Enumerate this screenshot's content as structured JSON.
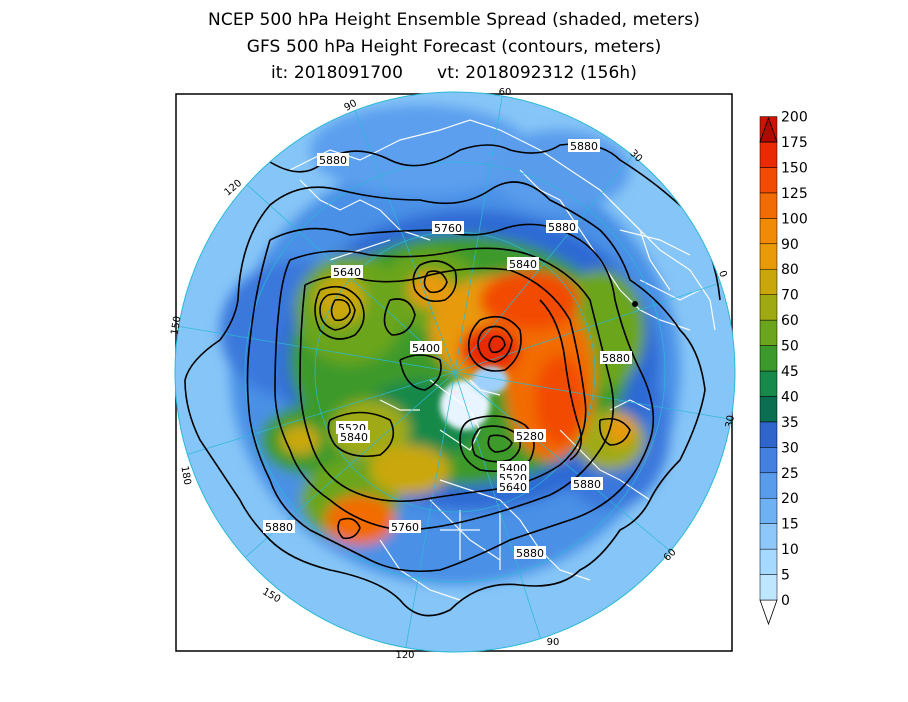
{
  "title": {
    "line1": "NCEP 500 hPa Height Ensemble Spread (shaded, meters)",
    "line2": "GFS 500 hPa Height Forecast (contours, meters)",
    "init": "it: 2018091700",
    "valid": "vt: 2018092312 (156h)"
  },
  "map": {
    "projection": "north polar stereographic",
    "longitude_labels": [
      "60",
      "30",
      "0",
      "30",
      "60",
      "90",
      "120",
      "150",
      "180",
      "150",
      "120",
      "90"
    ],
    "contour_labels": [
      "5880",
      "5880",
      "5760",
      "5880",
      "5640",
      "5840",
      "5400",
      "5880",
      "5520",
      "5840",
      "5280",
      "5400",
      "5520",
      "5640",
      "5880",
      "5880",
      "5760",
      "5880"
    ]
  },
  "colorbar": {
    "levels": [
      "0",
      "5",
      "10",
      "15",
      "20",
      "25",
      "30",
      "35",
      "40",
      "45",
      "50",
      "60",
      "70",
      "80",
      "90",
      "100",
      "125",
      "150",
      "175",
      "200"
    ],
    "colors": [
      "#bfe6ff",
      "#a6d9ff",
      "#8ec8fb",
      "#6fb2f4",
      "#5a9cec",
      "#4480e0",
      "#3066cc",
      "#0b6d52",
      "#17894a",
      "#3c9a2c",
      "#6aa51d",
      "#9faa12",
      "#c9a70b",
      "#e89a08",
      "#f08a07",
      "#f26c05",
      "#f24b03",
      "#e92a02",
      "#cc1400",
      "#b00a00"
    ]
  }
}
